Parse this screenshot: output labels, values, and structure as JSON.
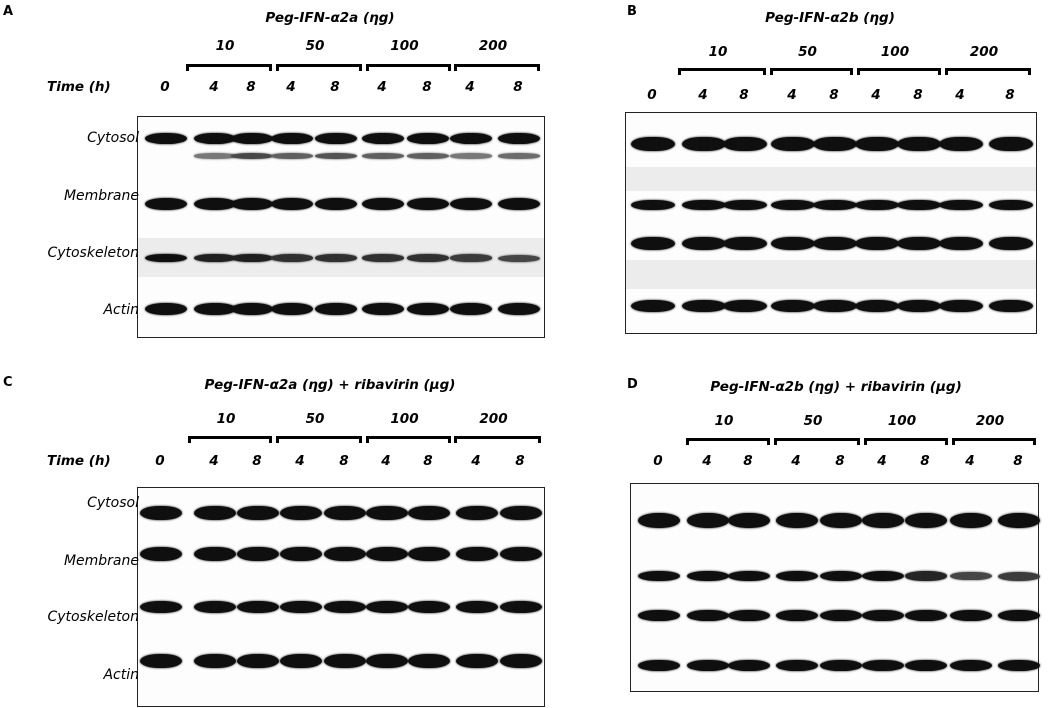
{
  "panels": [
    {
      "id": "A",
      "title": "Peg-IFN-α2a (ηg)",
      "row_labels": [
        "Cytosol",
        "Membrane",
        "Cytoskeleton",
        "Actin"
      ]
    },
    {
      "id": "B",
      "title": "Peg-IFN-α2b (ηg)",
      "row_labels": []
    },
    {
      "id": "C",
      "title": "Peg-IFN-α2a (ηg) + ribavirin (μg)",
      "row_labels": [
        "Cytosol",
        "Membrane",
        "Cytoskeleton",
        "Actin"
      ]
    },
    {
      "id": "D",
      "title": "Peg-IFN-α2b (ηg) + ribavirin (μg)",
      "row_labels": []
    }
  ],
  "doses": [
    "10",
    "50",
    "100",
    "200"
  ],
  "time_label": "Time (h)",
  "lanes": [
    "0",
    "4",
    "8",
    "4",
    "8",
    "4",
    "8",
    "4",
    "8"
  ],
  "band_color": "#111111"
}
